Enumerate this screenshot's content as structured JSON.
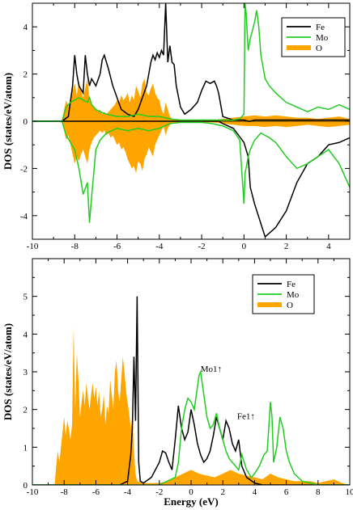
{
  "chart_data": [
    {
      "type": "line",
      "xlim": [
        -10,
        5
      ],
      "ylim": [
        -5,
        5
      ],
      "xticks": [
        -10,
        -8,
        -6,
        -4,
        -2,
        0,
        2,
        4
      ],
      "yticks": [
        -4,
        -2,
        0,
        2,
        4
      ],
      "xlabel": "",
      "ylabel": "DOS (states/eV/atom)",
      "legend": {
        "position": "top-right",
        "entries": [
          {
            "name": "Fe",
            "color": "#000000"
          },
          {
            "name": "Mo",
            "color": "#22cc22"
          },
          {
            "name": "O",
            "color": "#ffa500"
          }
        ]
      },
      "series": [
        {
          "name": "O",
          "color": "#ffa500",
          "fill": true,
          "x": [
            -10,
            -8.6,
            -8.5,
            -8.4,
            -8.3,
            -8.2,
            -8.1,
            -8.0,
            -7.9,
            -7.8,
            -7.7,
            -7.6,
            -7.5,
            -7.4,
            -7.3,
            -7.2,
            -7.1,
            -7.0,
            -6.9,
            -6.8,
            -6.7,
            -6.6,
            -6.5,
            -6.4,
            -6.3,
            -6.2,
            -6.1,
            -6.0,
            -5.9,
            -5.8,
            -5.7,
            -5.6,
            -5.5,
            -5.4,
            -5.3,
            -5.2,
            -5.1,
            -5.0,
            -4.9,
            -4.8,
            -4.7,
            -4.6,
            -4.5,
            -4.4,
            -4.3,
            -4.2,
            -4.1,
            -4.0,
            -3.9,
            -3.8,
            -3.7,
            -3.6,
            -3.5,
            -3.4,
            -3.3,
            -3.2,
            -3.0,
            -2.8,
            -2.5,
            -2.0,
            -1.5,
            -1.0,
            -0.5,
            0.0,
            0.5,
            1.0,
            1.5,
            2.0,
            2.5,
            3.0,
            3.5,
            4.0,
            4.5,
            5.0
          ],
          "y": [
            0,
            0,
            0.5,
            0.9,
            0.6,
            1.0,
            1.3,
            1.6,
            1.1,
            1.7,
            1.3,
            1.0,
            1.4,
            1.8,
            0.9,
            0.7,
            0.6,
            0.5,
            0.4,
            0.5,
            0.3,
            0.4,
            0.3,
            0.4,
            0.5,
            0.6,
            0.7,
            0.9,
            0.8,
            1.1,
            0.9,
            1.0,
            1.2,
            0.8,
            1.1,
            0.9,
            1.5,
            1.3,
            1.0,
            1.6,
            1.8,
            1.2,
            1.1,
            1.4,
            1.6,
            1.2,
            1.0,
            0.9,
            0.5,
            0.3,
            0.8,
            0.5,
            0.2,
            0.1,
            0.05,
            0.05,
            0.05,
            0.05,
            0.05,
            0.05,
            0.05,
            0.1,
            0.15,
            0.2,
            0.25,
            0.2,
            0.25,
            0.2,
            0.15,
            0.15,
            0.1,
            0.15,
            0.2,
            0.1
          ],
          "yneg": [
            0,
            0,
            -0.4,
            -0.8,
            -0.6,
            -1.0,
            -1.4,
            -1.8,
            -1.5,
            -1.7,
            -1.4,
            -1.2,
            -1.5,
            -1.8,
            -1.2,
            -0.9,
            -0.7,
            -0.6,
            -0.5,
            -0.4,
            -0.5,
            -0.4,
            -0.6,
            -0.5,
            -0.7,
            -0.6,
            -0.8,
            -1.0,
            -0.9,
            -1.2,
            -1.1,
            -1.3,
            -1.6,
            -1.8,
            -2.0,
            -1.9,
            -2.2,
            -1.7,
            -1.8,
            -2.1,
            -1.6,
            -1.4,
            -1.1,
            -1.3,
            -1.5,
            -1.0,
            -0.8,
            -0.6,
            -0.4,
            -0.2,
            -0.6,
            -0.3,
            -0.15,
            -0.1,
            -0.05,
            -0.05,
            -0.05,
            -0.05,
            -0.05,
            -0.05,
            -0.05,
            -0.1,
            -0.15,
            -0.2,
            -0.2,
            -0.25,
            -0.2,
            -0.25,
            -0.2,
            -0.15,
            -0.2,
            -0.25,
            -0.2,
            -0.15
          ]
        },
        {
          "name": "Fe",
          "color": "#000000",
          "x": [
            -10,
            -8.6,
            -8.3,
            -8.1,
            -8.0,
            -7.9,
            -7.8,
            -7.6,
            -7.5,
            -7.4,
            -7.3,
            -7.2,
            -7.0,
            -6.8,
            -6.7,
            -6.6,
            -6.5,
            -6.4,
            -6.2,
            -6.0,
            -5.8,
            -5.5,
            -5.2,
            -5.0,
            -4.8,
            -4.6,
            -4.4,
            -4.3,
            -4.2,
            -4.1,
            -4.0,
            -3.9,
            -3.8,
            -3.7,
            -3.6,
            -3.5,
            -3.4,
            -3.3,
            -3.2,
            -3.0,
            -2.8,
            -2.5,
            -2.2,
            -2.0,
            -1.8,
            -1.6,
            -1.4,
            -1.3,
            -1.2,
            -1.0,
            -0.5,
            0.0,
            0.2,
            0.3,
            0.5,
            1.0,
            1.5,
            2.0,
            2.5,
            3.0,
            3.5,
            4.0,
            4.5,
            5.0
          ],
          "y": [
            0,
            0,
            0.2,
            1.5,
            2.8,
            2.0,
            1.5,
            1.2,
            2.8,
            2.0,
            1.5,
            1.8,
            1.5,
            2.0,
            2.6,
            2.8,
            2.5,
            2.2,
            1.5,
            1.0,
            0.5,
            0.3,
            0.2,
            0.5,
            1.0,
            1.5,
            2.5,
            2.8,
            2.6,
            2.9,
            2.7,
            3.0,
            2.8,
            5.0,
            2.5,
            3.2,
            2.5,
            2.4,
            1.5,
            0.6,
            0.3,
            0.5,
            0.8,
            1.3,
            1.7,
            1.6,
            1.7,
            1.5,
            1.2,
            0.2,
            0.05,
            0.05,
            0,
            0,
            0.05,
            0.05,
            0.05,
            0.05,
            0.05,
            0.05,
            0.05,
            0.05,
            0.05,
            0.05
          ],
          "yneg": [
            0,
            0,
            0,
            0,
            0,
            0,
            0,
            0,
            0,
            0,
            0,
            0,
            0,
            0,
            0,
            0,
            0,
            0,
            0,
            0,
            0,
            0,
            0,
            0,
            0,
            0,
            0,
            0,
            0,
            0,
            0,
            0,
            0,
            0,
            0,
            0,
            0,
            0,
            0,
            0,
            0,
            0,
            0,
            0,
            0,
            0,
            0,
            0,
            0,
            -0.1,
            -0.3,
            -0.9,
            -1.5,
            -2.8,
            -3.5,
            -4.9,
            -4.5,
            -3.8,
            -2.6,
            -1.8,
            -1.5,
            -1.0,
            -0.9,
            -0.7
          ]
        },
        {
          "name": "Mo",
          "color": "#22cc22",
          "x": [
            -10,
            -8.6,
            -8.4,
            -8.2,
            -8.0,
            -7.8,
            -7.6,
            -7.4,
            -7.3,
            -7.2,
            -7.0,
            -6.8,
            -6.5,
            -6.0,
            -5.5,
            -5.0,
            -4.5,
            -4.0,
            -3.5,
            -3.0,
            -2.5,
            -2.0,
            -1.5,
            -1.0,
            -0.5,
            -0.2,
            0.0,
            0.05,
            0.1,
            0.2,
            0.3,
            0.5,
            0.6,
            0.7,
            0.8,
            1.0,
            1.2,
            1.5,
            2.0,
            2.5,
            3.0,
            3.5,
            4.0,
            4.5,
            5.0
          ],
          "y": [
            0,
            0,
            0.6,
            0.8,
            0.9,
            1.0,
            0.9,
            0.8,
            1.0,
            0.7,
            0.5,
            0.4,
            0.3,
            0.2,
            0.2,
            0.3,
            0.2,
            0.2,
            0.1,
            0.05,
            0.05,
            0.05,
            0.05,
            0.05,
            0.05,
            0.1,
            0.3,
            5.0,
            4.6,
            3.0,
            3.5,
            4.2,
            4.7,
            4.0,
            2.8,
            1.8,
            1.5,
            1.2,
            0.8,
            0.6,
            0.4,
            0.6,
            0.5,
            0.7,
            0.5
          ],
          "yneg": [
            0,
            0,
            -0.6,
            -0.9,
            -1.2,
            -2.0,
            -3.1,
            -2.6,
            -4.3,
            -3.2,
            -1.2,
            -0.8,
            -0.5,
            -0.3,
            -0.4,
            -0.3,
            -0.4,
            -0.3,
            -0.1,
            -0.05,
            -0.05,
            -0.05,
            -0.1,
            -0.2,
            -0.4,
            -0.8,
            -3.5,
            -2.2,
            -2.0,
            -1.5,
            -1.2,
            -0.8,
            -0.7,
            -0.6,
            -0.5,
            -0.6,
            -0.7,
            -0.9,
            -1.5,
            -2.0,
            -1.8,
            -1.5,
            -1.2,
            -1.8,
            -2.8
          ]
        }
      ]
    },
    {
      "type": "line",
      "xlim": [
        -10,
        10
      ],
      "ylim": [
        0,
        6
      ],
      "xticks": [
        -10,
        -8,
        -6,
        -4,
        -2,
        0,
        2,
        4,
        6,
        8,
        10
      ],
      "yticks": [
        0,
        1,
        2,
        3,
        4,
        5
      ],
      "xlabel": "Energy (eV)",
      "ylabel": "DOS (states/eV/atom)",
      "legend": {
        "position": "top-right",
        "entries": [
          {
            "name": "Fe",
            "color": "#000000"
          },
          {
            "name": "Mo",
            "color": "#22cc22"
          },
          {
            "name": "O",
            "color": "#ffa500"
          }
        ]
      },
      "annotations": [
        {
          "text": "Mo1↑",
          "x": 0.6,
          "y": 3.0
        },
        {
          "text": "Fe1↑",
          "x": 2.9,
          "y": 1.75
        }
      ],
      "series": [
        {
          "name": "O",
          "color": "#ffa500",
          "fill": true,
          "x": [
            -10,
            -8.6,
            -8.5,
            -8.4,
            -8.3,
            -8.2,
            -8.1,
            -8.0,
            -7.9,
            -7.8,
            -7.7,
            -7.6,
            -7.5,
            -7.4,
            -7.3,
            -7.2,
            -7.1,
            -7.0,
            -6.9,
            -6.8,
            -6.7,
            -6.6,
            -6.5,
            -6.4,
            -6.3,
            -6.2,
            -6.1,
            -6.0,
            -5.9,
            -5.8,
            -5.7,
            -5.6,
            -5.5,
            -5.4,
            -5.3,
            -5.2,
            -5.1,
            -5.0,
            -4.9,
            -4.8,
            -4.7,
            -4.6,
            -4.5,
            -4.4,
            -4.3,
            -4.2,
            -4.1,
            -4.0,
            -3.9,
            -3.8,
            -3.7,
            -3.6,
            -3.5,
            -3.4,
            -3.0,
            -2.5,
            -2.0,
            -1.5,
            -1.0,
            -0.5,
            0.0,
            0.5,
            1.0,
            1.5,
            2.0,
            2.5,
            3.0,
            3.5,
            4.0,
            4.5,
            5.0,
            5.5,
            6.0,
            6.5,
            7.0,
            7.5,
            8.0,
            8.5,
            9.0,
            9.5,
            10.0
          ],
          "y": [
            0,
            0,
            0.5,
            0.9,
            0.6,
            1.0,
            1.4,
            1.8,
            1.3,
            1.7,
            1.5,
            1.2,
            1.6,
            4.2,
            2.0,
            3.5,
            2.8,
            1.8,
            2.2,
            2.5,
            2.1,
            2.7,
            2.3,
            2.0,
            2.4,
            2.7,
            2.3,
            2.6,
            2.1,
            2.5,
            1.8,
            2.0,
            2.4,
            1.6,
            2.1,
            1.9,
            2.8,
            2.4,
            2.0,
            3.0,
            3.3,
            2.5,
            2.2,
            2.8,
            3.4,
            3.0,
            2.5,
            2.2,
            1.9,
            1.5,
            1.8,
            0.9,
            0.3,
            0.1,
            0.05,
            0.05,
            0.05,
            0.1,
            0.2,
            0.3,
            0.4,
            0.3,
            0.25,
            0.2,
            0.3,
            0.4,
            0.3,
            0.25,
            0.2,
            0.15,
            0.3,
            0.2,
            0.15,
            0.1,
            0.1,
            0.1,
            0.05,
            0.1,
            0.15,
            0.05,
            0
          ]
        },
        {
          "name": "Fe",
          "color": "#000000",
          "x": [
            -10,
            -8.6,
            -8.0,
            -7.0,
            -6.0,
            -5.0,
            -4.5,
            -4.0,
            -3.8,
            -3.7,
            -3.6,
            -3.5,
            -3.4,
            -3.3,
            -3.2,
            -3.0,
            -2.5,
            -2.0,
            -1.8,
            -1.6,
            -1.4,
            -1.2,
            -1.0,
            -0.8,
            -0.6,
            -0.4,
            -0.2,
            0.0,
            0.2,
            0.4,
            0.6,
            0.8,
            1.0,
            1.2,
            1.4,
            1.6,
            1.8,
            2.0,
            2.2,
            2.4,
            2.6,
            2.8,
            3.0,
            3.2,
            3.5,
            4.0,
            4.5,
            5.0,
            5.5,
            6.0,
            7.0,
            8.0,
            9.0,
            10.0
          ],
          "y": [
            0,
            0,
            0,
            0,
            0,
            0,
            0,
            0.1,
            0.8,
            1.5,
            3.4,
            1.7,
            5.0,
            0.6,
            0.1,
            0.05,
            0.2,
            0.6,
            0.9,
            0.85,
            0.6,
            0.4,
            1.2,
            2.1,
            1.5,
            1.2,
            1.4,
            2.0,
            1.6,
            1.1,
            0.8,
            0.6,
            0.7,
            0.9,
            1.3,
            1.8,
            1.5,
            1.2,
            1.7,
            1.5,
            1.1,
            0.9,
            1.2,
            0.5,
            0.2,
            0.05,
            0,
            0,
            0,
            0,
            0,
            0,
            0,
            0
          ]
        },
        {
          "name": "Mo",
          "color": "#22cc22",
          "x": [
            -10,
            -8.6,
            -8.0,
            -6.0,
            -4.0,
            -3.0,
            -2.5,
            -2.0,
            -1.5,
            -1.0,
            -0.8,
            -0.6,
            -0.4,
            -0.2,
            0.0,
            0.2,
            0.4,
            0.5,
            0.6,
            0.8,
            1.0,
            1.2,
            1.4,
            1.6,
            1.8,
            2.0,
            2.2,
            2.4,
            2.6,
            2.8,
            3.0,
            3.2,
            3.5,
            3.8,
            4.0,
            4.3,
            4.6,
            4.8,
            5.0,
            5.1,
            5.2,
            5.4,
            5.6,
            5.8,
            6.0,
            6.2,
            6.5,
            7.0,
            7.5,
            8.0,
            8.5,
            9.0,
            10.0
          ],
          "y": [
            0,
            0,
            0,
            0,
            0,
            0,
            0,
            0,
            0.1,
            0.2,
            0.6,
            1.5,
            2.0,
            2.3,
            2.2,
            2.0,
            2.6,
            2.9,
            3.0,
            2.4,
            1.8,
            1.5,
            1.6,
            1.9,
            1.5,
            1.2,
            0.9,
            0.7,
            0.6,
            0.5,
            0.4,
            0.8,
            0.4,
            0.2,
            0.3,
            0.5,
            0.8,
            0.9,
            2.2,
            1.8,
            0.6,
            1.0,
            1.8,
            1.5,
            0.9,
            0.6,
            0.3,
            0.1,
            0.05,
            0,
            0,
            0,
            0
          ]
        }
      ]
    }
  ]
}
